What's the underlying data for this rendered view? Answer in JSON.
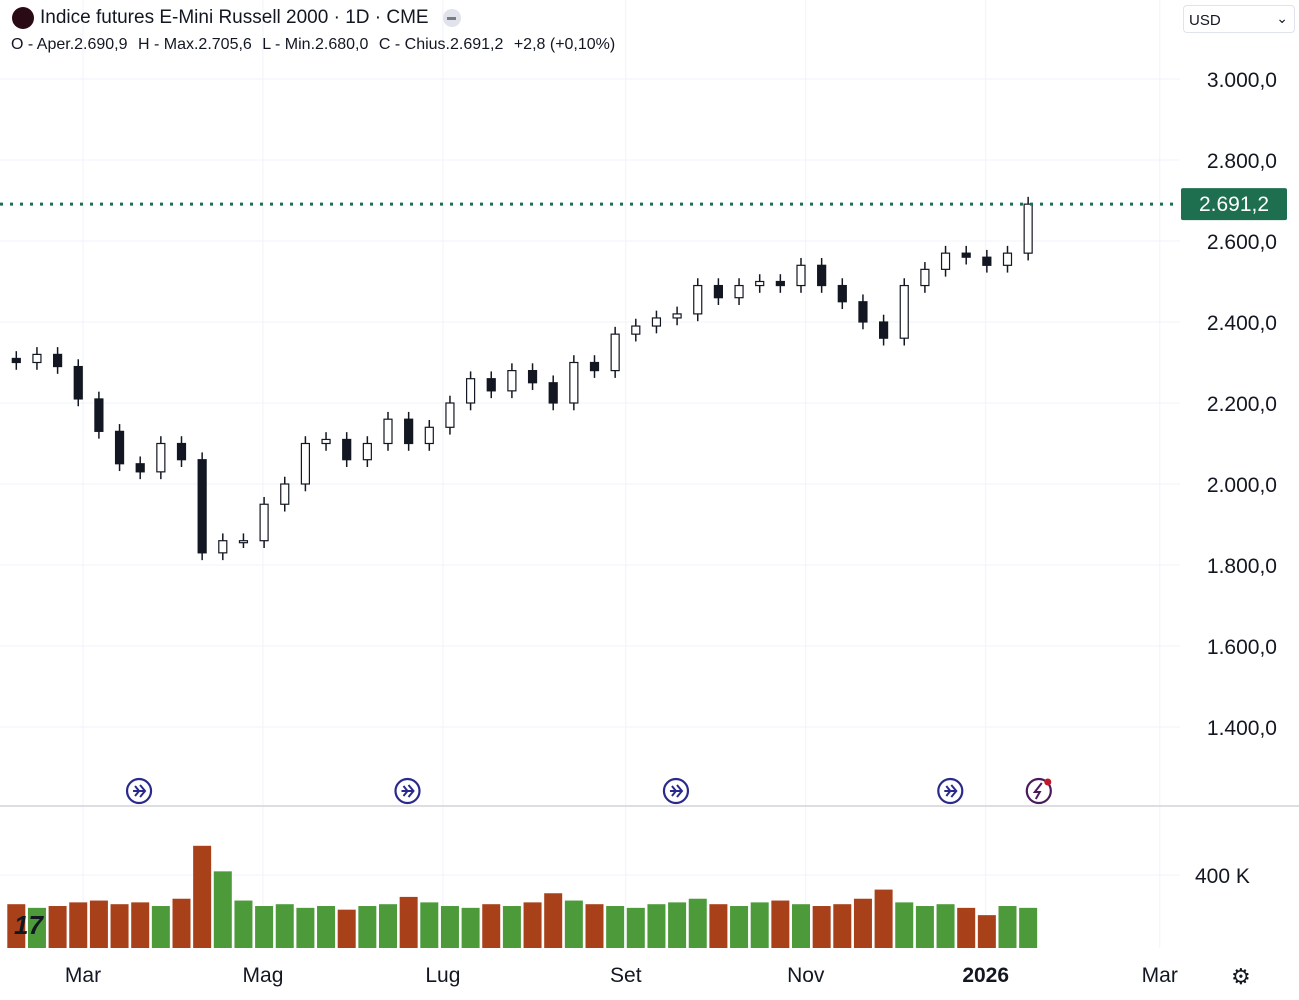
{
  "header": {
    "title": "Indice futures E-Mini Russell 2000 · 1D · CME",
    "ohlc": {
      "open": "O - Aper.2.690,9",
      "high": "H - Max.2.705,6",
      "low": "L - Min.2.680,0",
      "close": "C - Chius.2.691,2",
      "change": "+2,8 (+0,10%)"
    }
  },
  "currency_selector": {
    "value": "USD",
    "icon": "chevron-down-icon"
  },
  "current_price_label": "2.691,2",
  "colors": {
    "up": "#4c9a3a",
    "down": "#a8401a",
    "price_line": "#1e6e50",
    "candle": "#131722",
    "marker": "#2a2a8c"
  },
  "settings_icon": "gear-icon",
  "chart_data": {
    "type": "candlestick",
    "title": "Indice futures E-Mini Russell 2000 · 1D · CME",
    "y_ticks": [
      "3.000,0",
      "2.800,0",
      "2.600,0",
      "2.400,0",
      "2.200,0",
      "2.000,0",
      "1.800,0",
      "1.600,0",
      "1.400,0"
    ],
    "y_tick_values": [
      3000,
      2800,
      2600,
      2400,
      2200,
      2000,
      1800,
      1600,
      1400
    ],
    "ylim": [
      1240,
      3050
    ],
    "x_ticks": [
      {
        "label": "Mar",
        "date": "2025-03-01",
        "bold": false
      },
      {
        "label": "Mag",
        "date": "2025-05-01",
        "bold": false
      },
      {
        "label": "Lug",
        "date": "2025-07-01",
        "bold": false
      },
      {
        "label": "Set",
        "date": "2025-09-01",
        "bold": false
      },
      {
        "label": "Nov",
        "date": "2025-11-01",
        "bold": false
      },
      {
        "label": "2026",
        "date": "2026-01-01",
        "bold": true
      },
      {
        "label": "Mar",
        "date": "2026-03-01",
        "bold": false
      }
    ],
    "grid": true,
    "current_price": 2691.2,
    "dates": [
      "2025-02-03",
      "2025-02-10",
      "2025-02-17",
      "2025-02-24",
      "2025-03-03",
      "2025-03-10",
      "2025-03-17",
      "2025-03-24",
      "2025-03-31",
      "2025-04-07",
      "2025-04-14",
      "2025-04-21",
      "2025-04-28",
      "2025-05-05",
      "2025-05-12",
      "2025-05-19",
      "2025-05-26",
      "2025-06-02",
      "2025-06-09",
      "2025-06-16",
      "2025-06-23",
      "2025-06-30",
      "2025-07-07",
      "2025-07-14",
      "2025-07-21",
      "2025-07-28",
      "2025-08-04",
      "2025-08-11",
      "2025-08-18",
      "2025-08-25",
      "2025-09-01",
      "2025-09-08",
      "2025-09-15",
      "2025-09-22",
      "2025-09-29",
      "2025-10-06",
      "2025-10-13",
      "2025-10-20",
      "2025-10-27",
      "2025-11-03",
      "2025-11-10",
      "2025-11-17",
      "2025-11-24",
      "2025-12-01",
      "2025-12-08",
      "2025-12-15",
      "2025-12-22",
      "2025-12-29",
      "2026-01-05",
      "2026-01-12"
    ],
    "close": [
      2300,
      2320,
      2290,
      2210,
      2130,
      2050,
      2030,
      2100,
      2060,
      1830,
      1860,
      1860,
      1950,
      2000,
      2100,
      2110,
      2060,
      2100,
      2160,
      2100,
      2140,
      2200,
      2260,
      2230,
      2280,
      2250,
      2200,
      2300,
      2280,
      2370,
      2390,
      2410,
      2420,
      2490,
      2460,
      2490,
      2500,
      2490,
      2540,
      2490,
      2450,
      2400,
      2360,
      2490,
      2530,
      2570,
      2560,
      2540,
      2570,
      2691
    ],
    "volume_ticks": [
      {
        "label": "400 K",
        "value": 400
      }
    ],
    "volume_k": [
      240,
      220,
      230,
      250,
      260,
      240,
      250,
      230,
      270,
      560,
      420,
      260,
      230,
      240,
      220,
      230,
      210,
      230,
      240,
      280,
      250,
      230,
      220,
      240,
      230,
      250,
      300,
      260,
      240,
      230,
      220,
      240,
      250,
      270,
      240,
      230,
      250,
      260,
      240,
      230,
      240,
      270,
      320,
      250,
      230,
      240,
      220,
      180,
      230,
      220
    ],
    "events": [
      {
        "date": "2025-03-20",
        "type": "dividend",
        "icon": "arrow-circle-icon"
      },
      {
        "date": "2025-06-19",
        "type": "dividend",
        "icon": "arrow-circle-icon"
      },
      {
        "date": "2025-09-18",
        "type": "dividend",
        "icon": "arrow-circle-icon"
      },
      {
        "date": "2025-12-20",
        "type": "dividend",
        "icon": "arrow-circle-icon"
      },
      {
        "date": "2026-01-19",
        "type": "earnings",
        "icon": "lightning-circle-icon"
      }
    ]
  }
}
